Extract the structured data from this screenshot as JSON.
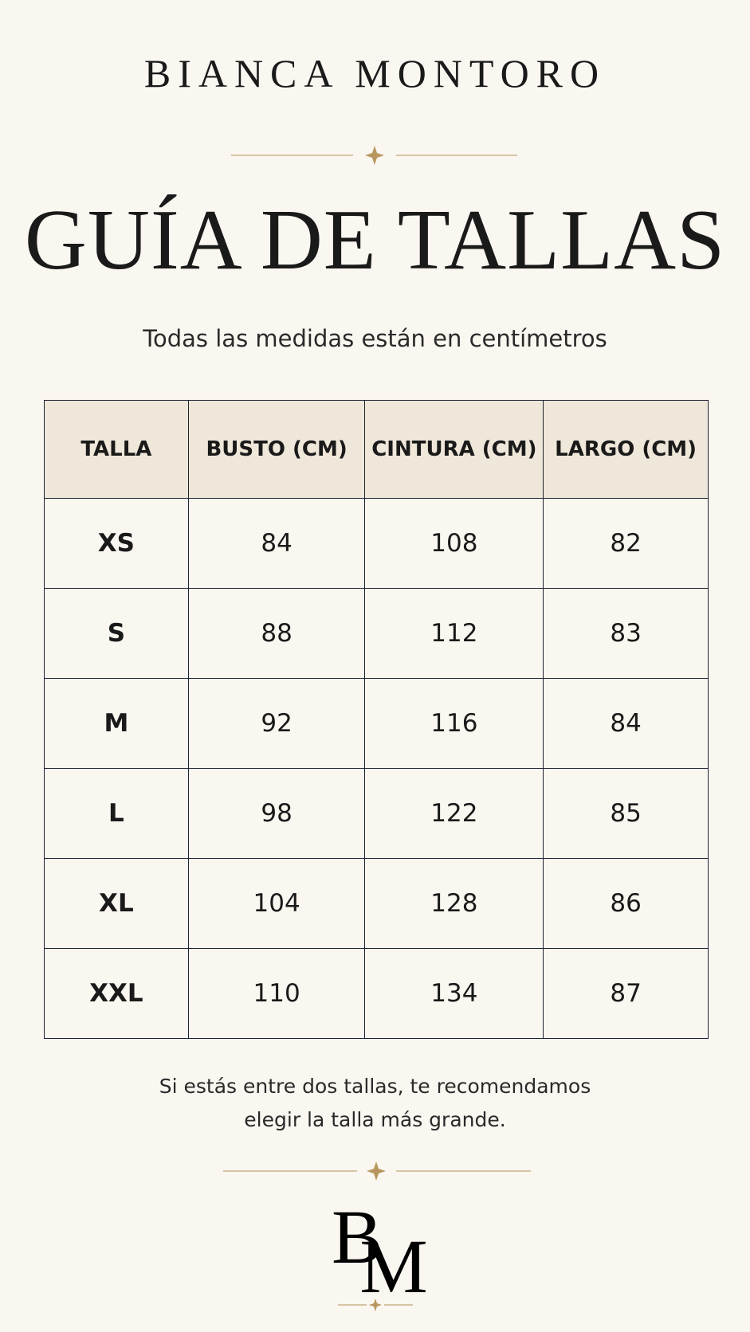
{
  "brand": "BIANCA MONTORO",
  "title": "GUÍA DE TALLAS",
  "subtitle": "Todas las medidas están en centímetros",
  "table": {
    "headers": [
      "TALLA",
      "BUSTO (CM)",
      "CINTURA (CM)",
      "LARGO (CM)"
    ],
    "rows": [
      [
        "XS",
        84,
        108,
        82
      ],
      [
        "S",
        88,
        112,
        83
      ],
      [
        "M",
        92,
        116,
        84
      ],
      [
        "L",
        98,
        122,
        85
      ],
      [
        "XL",
        104,
        128,
        86
      ],
      [
        "XXL",
        110,
        134,
        87
      ]
    ]
  },
  "note": [
    "Si estás entre dos tallas, te recomendamos",
    "elegir la talla más grande."
  ],
  "monogram": [
    "B",
    "M"
  ]
}
